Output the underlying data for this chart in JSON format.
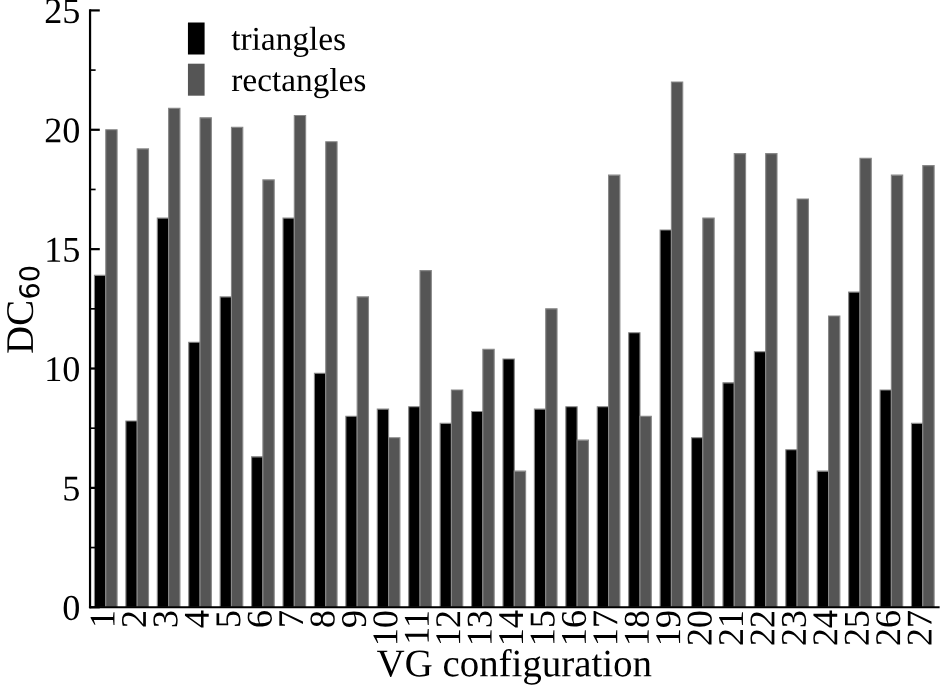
{
  "chart_data": {
    "type": "bar",
    "xlabel": "VG configuration",
    "ylabel": "DC$_{60}$",
    "categories": [
      "1",
      "2",
      "3",
      "4",
      "5",
      "6",
      "7",
      "8",
      "9",
      "10",
      "11",
      "12",
      "13",
      "14",
      "15",
      "16",
      "17",
      "18",
      "19",
      "20",
      "21",
      "22",
      "23",
      "24",
      "25",
      "26",
      "27"
    ],
    "series": [
      {
        "name": "triangles",
        "color": "#000000",
        "values": [
          13.9,
          7.8,
          16.3,
          11.1,
          13.0,
          6.3,
          16.3,
          9.8,
          8.0,
          8.3,
          8.4,
          7.7,
          8.2,
          10.4,
          8.3,
          8.4,
          8.4,
          11.5,
          15.8,
          7.1,
          9.4,
          10.7,
          6.6,
          5.7,
          13.2,
          9.1,
          7.7
        ]
      },
      {
        "name": "rectangles",
        "color": "#555555",
        "values": [
          20.0,
          19.2,
          20.9,
          20.5,
          20.1,
          17.9,
          20.6,
          19.5,
          13.0,
          7.1,
          14.1,
          9.1,
          10.8,
          5.7,
          12.5,
          7.0,
          18.1,
          8.0,
          22.0,
          16.3,
          19.0,
          19.0,
          17.1,
          12.2,
          18.8,
          18.1,
          18.5
        ]
      }
    ],
    "ylim": [
      0,
      25
    ],
    "yticks": [
      0,
      5,
      10,
      15,
      20,
      25
    ],
    "grid": false,
    "legend": "top left"
  }
}
